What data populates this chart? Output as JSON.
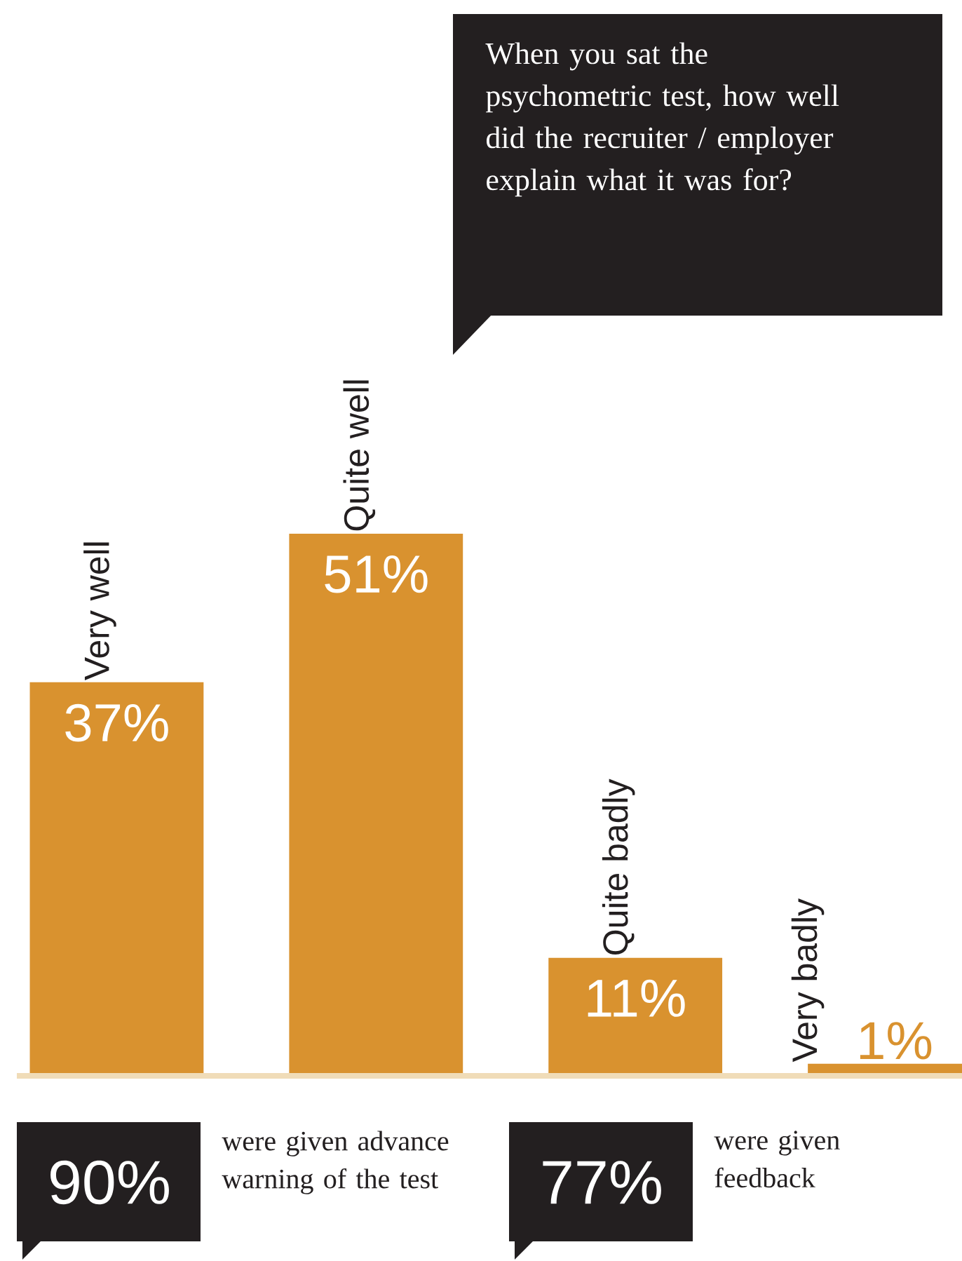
{
  "chart_data": {
    "type": "bar",
    "title": "When you sat the psychometric test, how well did the recruiter / employer explain what it was for?",
    "categories": [
      "Very well",
      "Quite well",
      "Quite badly",
      "Very badly"
    ],
    "values": [
      37,
      51,
      11,
      1
    ],
    "value_labels": [
      "37%",
      "51%",
      "11%",
      "1%"
    ],
    "color": "#d9922f",
    "annotations": [
      "90%",
      "were given advance warning of the test",
      "77%",
      "were given feedback"
    ]
  }
}
